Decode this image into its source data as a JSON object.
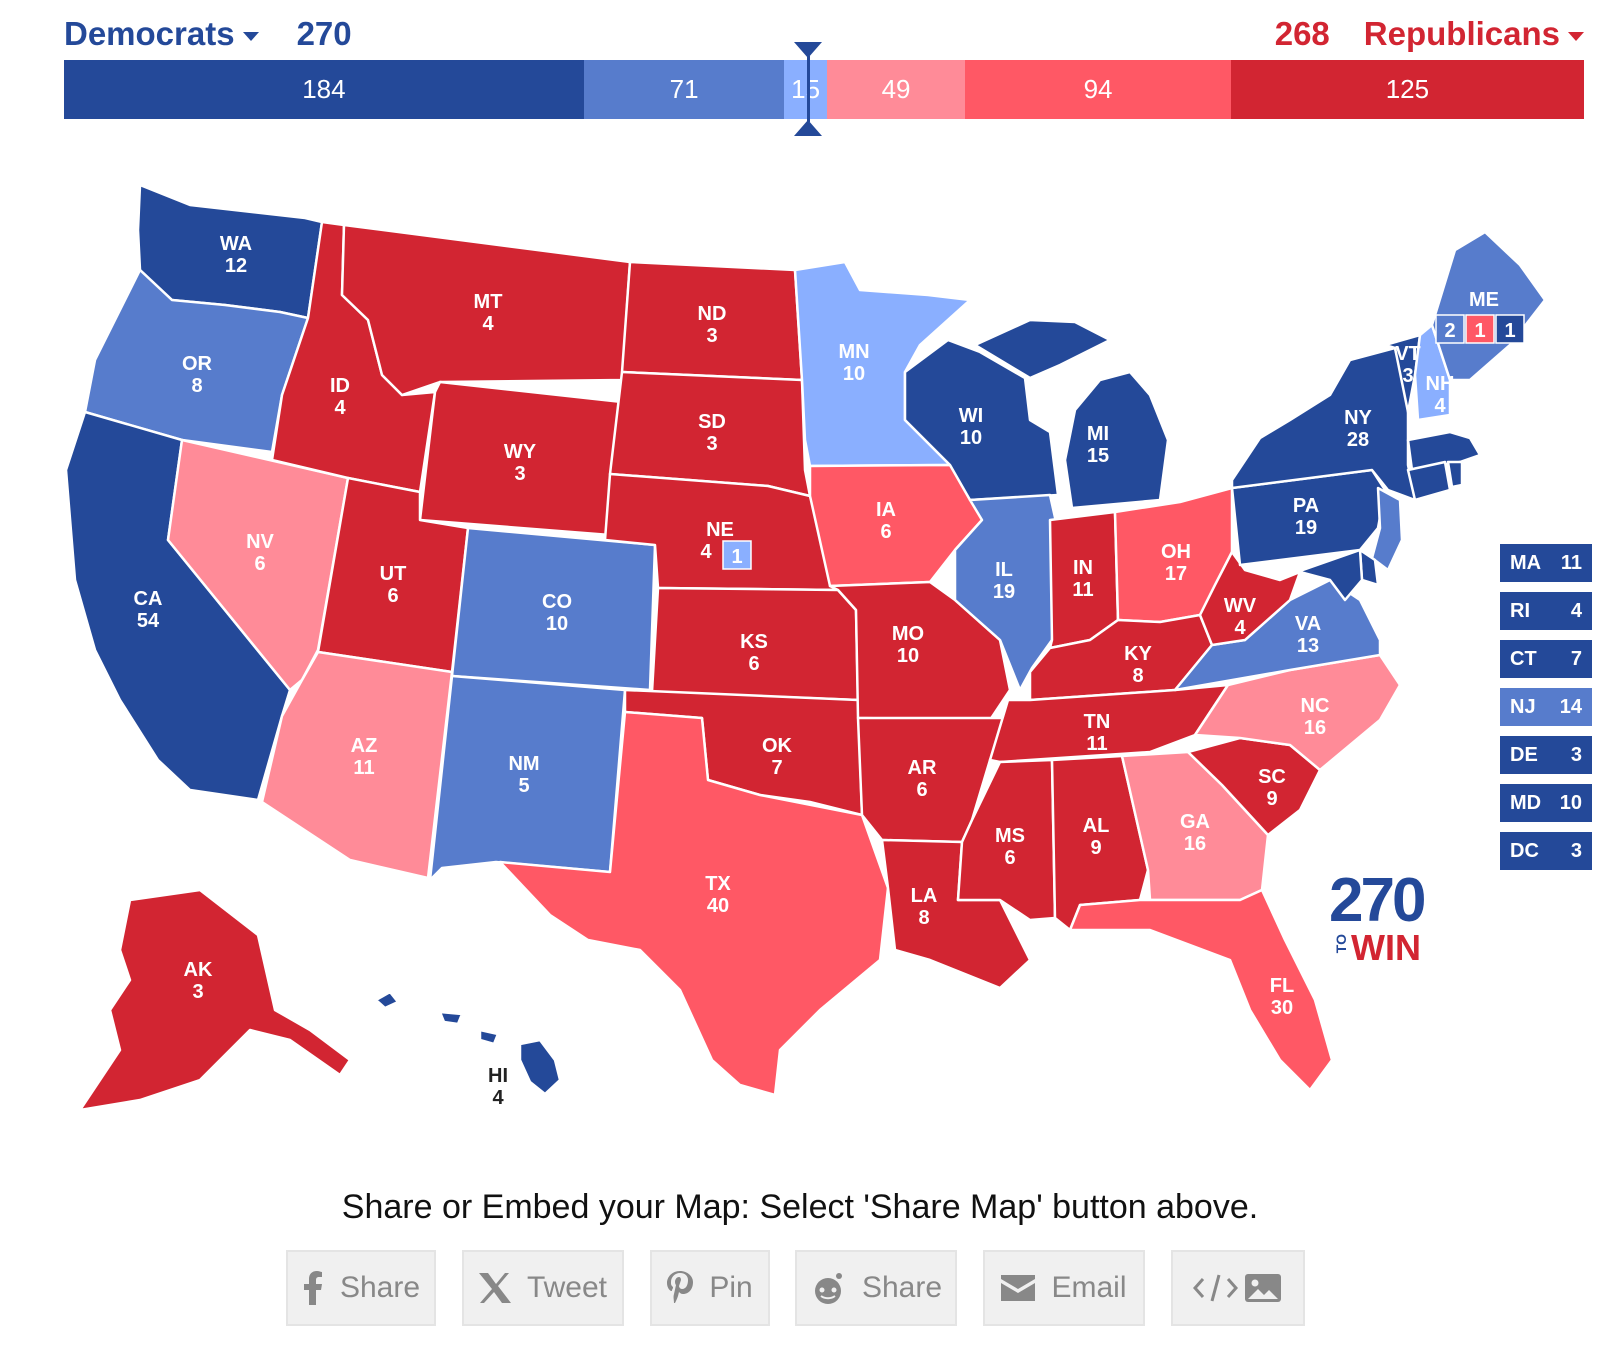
{
  "header": {
    "dem_label": "Democrats",
    "dem_total": "270",
    "rep_label": "Republicans",
    "rep_total": "268"
  },
  "bar": [
    {
      "value": "184",
      "color": "#244999"
    },
    {
      "value": "71",
      "color": "#577ccc"
    },
    {
      "value": "15",
      "color": "#8aafff"
    },
    {
      "value": "49",
      "color": "#ff8b98"
    },
    {
      "value": "94",
      "color": "#ff5865"
    },
    {
      "value": "125",
      "color": "#d22532"
    }
  ],
  "colors": {
    "safe_d": "#244999",
    "likely_d": "#577ccc",
    "lean_d": "#8aafff",
    "lean_r": "#ff8b98",
    "likely_r": "#ff5865",
    "safe_r": "#d22532"
  },
  "states": [
    {
      "abbr": "WA",
      "ev": "12",
      "rating": "safe_d"
    },
    {
      "abbr": "OR",
      "ev": "8",
      "rating": "likely_d"
    },
    {
      "abbr": "CA",
      "ev": "54",
      "rating": "safe_d"
    },
    {
      "abbr": "NV",
      "ev": "6",
      "rating": "lean_r"
    },
    {
      "abbr": "ID",
      "ev": "4",
      "rating": "safe_r"
    },
    {
      "abbr": "MT",
      "ev": "4",
      "rating": "safe_r"
    },
    {
      "abbr": "WY",
      "ev": "3",
      "rating": "safe_r"
    },
    {
      "abbr": "UT",
      "ev": "6",
      "rating": "safe_r"
    },
    {
      "abbr": "AZ",
      "ev": "11",
      "rating": "lean_r"
    },
    {
      "abbr": "CO",
      "ev": "10",
      "rating": "likely_d"
    },
    {
      "abbr": "NM",
      "ev": "5",
      "rating": "likely_d"
    },
    {
      "abbr": "ND",
      "ev": "3",
      "rating": "safe_r"
    },
    {
      "abbr": "SD",
      "ev": "3",
      "rating": "safe_r"
    },
    {
      "abbr": "NE",
      "ev": "4",
      "rating": "safe_r"
    },
    {
      "abbr": "KS",
      "ev": "6",
      "rating": "safe_r"
    },
    {
      "abbr": "OK",
      "ev": "7",
      "rating": "safe_r"
    },
    {
      "abbr": "TX",
      "ev": "40",
      "rating": "likely_r"
    },
    {
      "abbr": "MN",
      "ev": "10",
      "rating": "lean_d"
    },
    {
      "abbr": "IA",
      "ev": "6",
      "rating": "likely_r"
    },
    {
      "abbr": "MO",
      "ev": "10",
      "rating": "safe_r"
    },
    {
      "abbr": "AR",
      "ev": "6",
      "rating": "safe_r"
    },
    {
      "abbr": "LA",
      "ev": "8",
      "rating": "safe_r"
    },
    {
      "abbr": "WI",
      "ev": "10",
      "rating": "safe_d"
    },
    {
      "abbr": "IL",
      "ev": "19",
      "rating": "likely_d"
    },
    {
      "abbr": "MI",
      "ev": "15",
      "rating": "safe_d"
    },
    {
      "abbr": "IN",
      "ev": "11",
      "rating": "safe_r"
    },
    {
      "abbr": "OH",
      "ev": "17",
      "rating": "likely_r"
    },
    {
      "abbr": "KY",
      "ev": "8",
      "rating": "safe_r"
    },
    {
      "abbr": "TN",
      "ev": "11",
      "rating": "safe_r"
    },
    {
      "abbr": "MS",
      "ev": "6",
      "rating": "safe_r"
    },
    {
      "abbr": "AL",
      "ev": "9",
      "rating": "safe_r"
    },
    {
      "abbr": "GA",
      "ev": "16",
      "rating": "lean_r"
    },
    {
      "abbr": "FL",
      "ev": "30",
      "rating": "likely_r"
    },
    {
      "abbr": "SC",
      "ev": "9",
      "rating": "safe_r"
    },
    {
      "abbr": "NC",
      "ev": "16",
      "rating": "lean_r"
    },
    {
      "abbr": "VA",
      "ev": "13",
      "rating": "likely_d"
    },
    {
      "abbr": "WV",
      "ev": "4",
      "rating": "safe_r"
    },
    {
      "abbr": "PA",
      "ev": "19",
      "rating": "safe_d"
    },
    {
      "abbr": "NY",
      "ev": "28",
      "rating": "safe_d"
    },
    {
      "abbr": "VT",
      "ev": "3",
      "rating": "safe_d"
    },
    {
      "abbr": "NH",
      "ev": "4",
      "rating": "lean_d"
    },
    {
      "abbr": "ME",
      "ev": "",
      "rating": "likely_d"
    },
    {
      "abbr": "AK",
      "ev": "3",
      "rating": "safe_r"
    },
    {
      "abbr": "HI",
      "ev": "4",
      "rating": "safe_d"
    }
  ],
  "split_boxes": {
    "ne_district": "1",
    "me_statewide": "2",
    "me_cd2": "1",
    "me_cd1": "1"
  },
  "small_states": [
    {
      "abbr": "MA",
      "ev": "11",
      "rating": "safe_d"
    },
    {
      "abbr": "RI",
      "ev": "4",
      "rating": "safe_d"
    },
    {
      "abbr": "CT",
      "ev": "7",
      "rating": "safe_d"
    },
    {
      "abbr": "NJ",
      "ev": "14",
      "rating": "likely_d"
    },
    {
      "abbr": "DE",
      "ev": "3",
      "rating": "safe_d"
    },
    {
      "abbr": "MD",
      "ev": "10",
      "rating": "safe_d"
    },
    {
      "abbr": "DC",
      "ev": "3",
      "rating": "safe_d"
    }
  ],
  "logo": {
    "num": "270",
    "to": "TO",
    "win": "WIN"
  },
  "share": {
    "text": "Share or Embed your Map: Select 'Share Map' button above.",
    "buttons": [
      {
        "label": "Share",
        "icon": "facebook-icon"
      },
      {
        "label": "Tweet",
        "icon": "x-icon"
      },
      {
        "label": "Pin",
        "icon": "pinterest-icon"
      },
      {
        "label": "Share",
        "icon": "reddit-icon"
      },
      {
        "label": "Email",
        "icon": "email-icon"
      },
      {
        "label": "",
        "icon": "embed-image-icon"
      }
    ]
  }
}
